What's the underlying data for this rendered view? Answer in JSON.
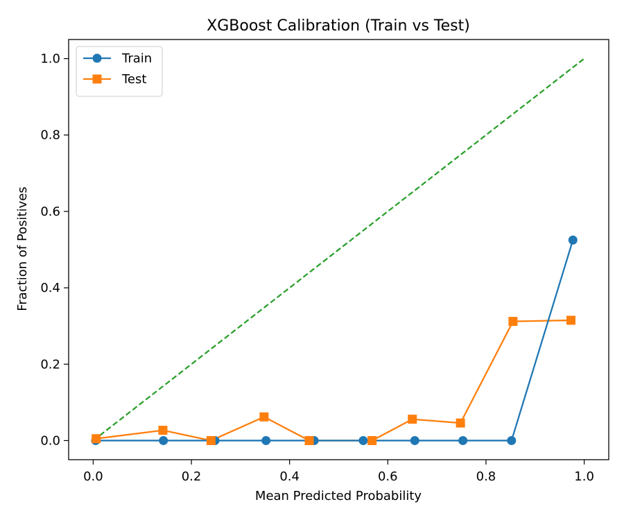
{
  "chart_data": {
    "type": "line",
    "title": "XGBoost Calibration (Train vs Test)",
    "xlabel": "Mean Predicted Probability",
    "ylabel": "Fraction of Positives",
    "xlim": [
      -0.05,
      1.05
    ],
    "ylim": [
      -0.05,
      1.05
    ],
    "xticks": [
      "0.0",
      "0.2",
      "0.4",
      "0.6",
      "0.8",
      "1.0"
    ],
    "yticks": [
      "0.0",
      "0.2",
      "0.4",
      "0.6",
      "0.8",
      "1.0"
    ],
    "grid": false,
    "legend_position": "top-left",
    "series": [
      {
        "name": "Train",
        "color": "#1f77b4",
        "marker": "circle",
        "x": [
          0.005,
          0.143,
          0.248,
          0.352,
          0.45,
          0.55,
          0.655,
          0.753,
          0.852,
          0.977
        ],
        "y": [
          0.0,
          0.0,
          0.0,
          0.0,
          0.0,
          0.0,
          0.0,
          0.0,
          0.0,
          0.525
        ]
      },
      {
        "name": "Test",
        "color": "#ff7f0e",
        "marker": "square",
        "x": [
          0.006,
          0.142,
          0.24,
          0.348,
          0.44,
          0.568,
          0.65,
          0.748,
          0.855,
          0.973
        ],
        "y": [
          0.005,
          0.027,
          0.0,
          0.062,
          0.0,
          0.0,
          0.056,
          0.046,
          0.312,
          0.315
        ]
      },
      {
        "name": "",
        "color": "#2ca02c",
        "marker": "none",
        "dashed": true,
        "x": [
          0.0,
          1.0
        ],
        "y": [
          0.0,
          1.0
        ]
      }
    ]
  }
}
